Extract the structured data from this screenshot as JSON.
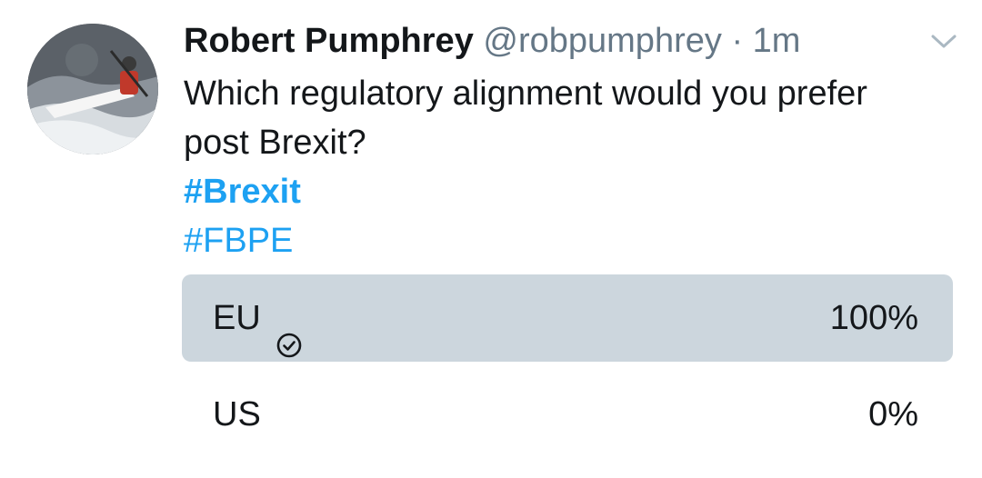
{
  "tweet": {
    "author_name": "Robert Pumphrey",
    "handle": "@robpumphrey",
    "separator": "·",
    "time": "1m",
    "text_lines": [
      "Which regulatory alignment would you prefer",
      "post Brexit?"
    ],
    "hashtags": [
      "#Brexit",
      "#FBPE"
    ],
    "menu_icon": "chevron-down-icon",
    "avatar_icon": "kayaker-avatar"
  },
  "poll": {
    "options": [
      {
        "label": "EU",
        "percent_text": "100%",
        "percent": 100,
        "selected": true
      },
      {
        "label": "US",
        "percent_text": "0%",
        "percent": 0,
        "selected": false
      }
    ]
  },
  "colors": {
    "link": "#1da1f2",
    "secondary_text": "#657786",
    "poll_fill": "#ccd6dd",
    "text": "#14171a"
  }
}
